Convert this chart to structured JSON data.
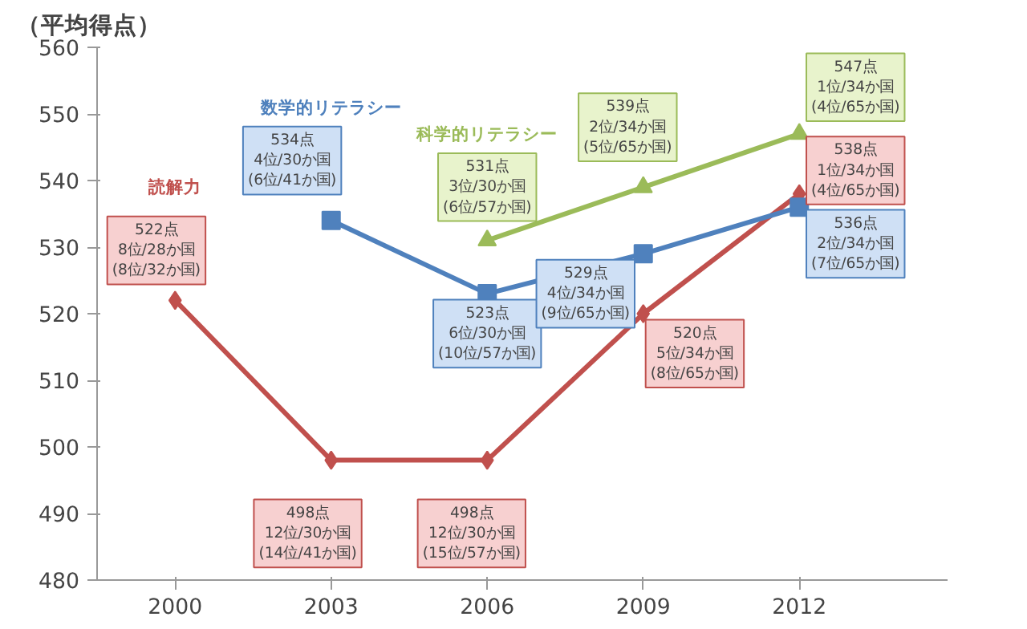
{
  "chart_data": {
    "type": "line",
    "ylabel": "（平均得点）",
    "categories": [
      "2000",
      "2003",
      "2006",
      "2009",
      "2012"
    ],
    "ylim": [
      480,
      560
    ],
    "yticks": [
      480,
      490,
      500,
      510,
      520,
      530,
      540,
      550,
      560
    ],
    "grid": false,
    "line_style": "solid",
    "series": [
      {
        "name": "読解力",
        "color": "#c0504d",
        "marker": "diamond",
        "values": [
          522,
          498,
          498,
          520,
          538
        ]
      },
      {
        "name": "数学的リテラシー",
        "color": "#4f81bd",
        "marker": "square",
        "values": [
          null,
          534,
          523,
          529,
          536
        ]
      },
      {
        "name": "科学的リテラシー",
        "color": "#9bbb59",
        "marker": "triangle",
        "values": [
          null,
          null,
          531,
          539,
          547
        ]
      }
    ],
    "annotations": [
      {
        "text": "522点\n8位/28か国\n(8位/32か国)",
        "x": "2000",
        "y": 522
      },
      {
        "text": "498点\n12位/30か国\n(14位/41か国)",
        "x": "2003",
        "y": 498
      },
      {
        "text": "498点\n12位/30か国\n(15位/57か国)",
        "x": "2006",
        "y": 498
      },
      {
        "text": "520点\n5位/34か国\n(8位/65か国)",
        "x": "2009",
        "y": 520
      },
      {
        "text": "538点\n1位/34か国\n(4位/65か国)",
        "x": "2012",
        "y": 538
      },
      {
        "text": "534点\n4位/30か国\n(6位/41か国)",
        "x": "2003",
        "y": 534
      },
      {
        "text": "523点\n6位/30か国\n(10位/57か国)",
        "x": "2006",
        "y": 523
      },
      {
        "text": "529点\n4位/34か国\n(9位/65か国)",
        "x": "2009",
        "y": 529
      },
      {
        "text": "536点\n2位/34か国\n(7位/65か国)",
        "x": "2012",
        "y": 536
      },
      {
        "text": "531点\n3位/30か国\n(6位/57か国)",
        "x": "2006",
        "y": 531
      },
      {
        "text": "539点\n2位/34か国\n(5位/65か国)",
        "x": "2009",
        "y": 539
      },
      {
        "text": "547点\n1位/34か国\n(4位/65か国)",
        "x": "2012",
        "y": 547
      }
    ]
  }
}
